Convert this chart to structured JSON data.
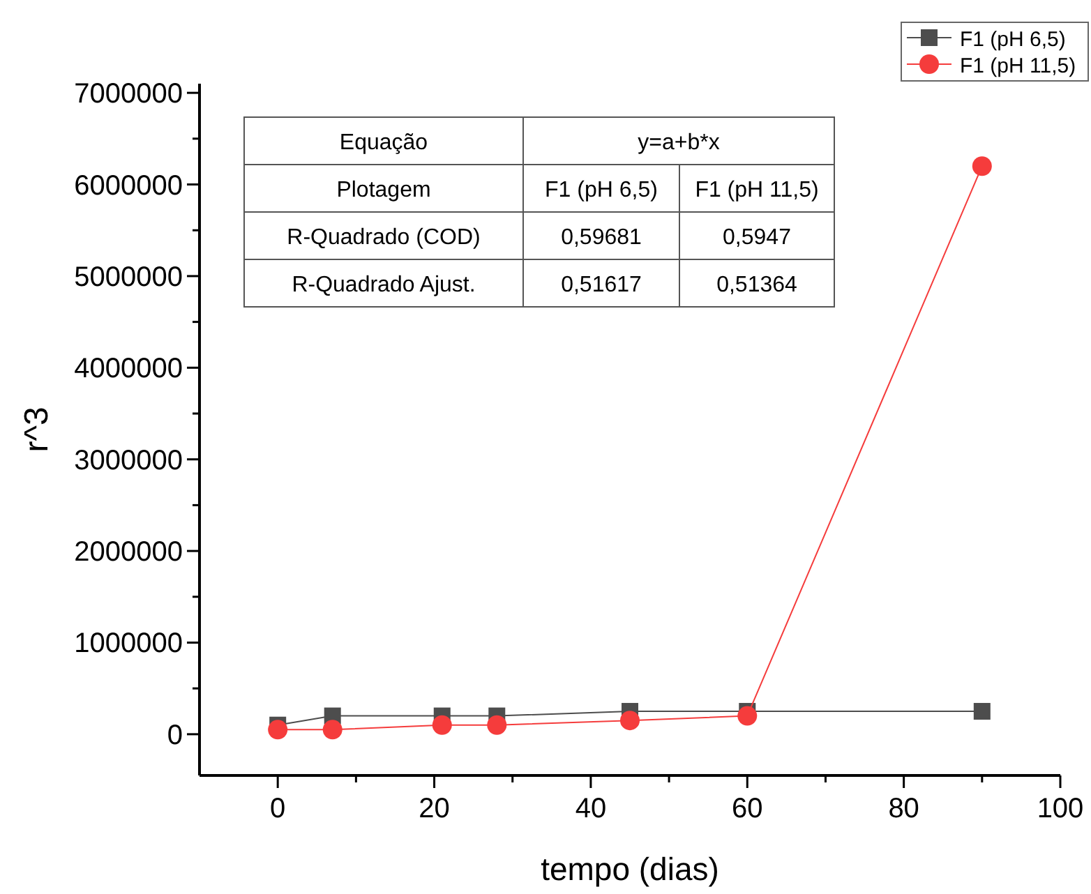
{
  "chart_data": {
    "type": "line",
    "xlabel": "tempo (dias)",
    "ylabel": "r^3",
    "xlim": [
      -10,
      100
    ],
    "xticks": [
      0,
      {
        "value": 10,
        "label": null
      },
      20,
      {
        "value": 30,
        "label": null
      },
      40,
      {
        "value": 50,
        "label": null
      },
      60,
      {
        "value": 70,
        "label": null
      },
      80,
      {
        "value": 90,
        "label": null
      },
      100
    ],
    "ylim": [
      -450000,
      7100000
    ],
    "yticks": [
      0,
      {
        "value": 500000,
        "label": null
      },
      1000000,
      {
        "value": 1500000,
        "label": null
      },
      2000000,
      {
        "value": 2500000,
        "label": null
      },
      3000000,
      {
        "value": 3500000,
        "label": null
      },
      4000000,
      {
        "value": 4500000,
        "label": null
      },
      5000000,
      {
        "value": 5500000,
        "label": null
      },
      6000000,
      {
        "value": 6500000,
        "label": null
      },
      7000000
    ],
    "x": [
      0,
      7,
      21,
      28,
      45,
      60,
      90
    ],
    "series": [
      {
        "name": "F1 (pH 6,5)",
        "color": "#4d4d4d",
        "marker": "square",
        "values": [
          100000,
          200000,
          200000,
          200000,
          250000,
          250000,
          250000
        ]
      },
      {
        "name": "F1 (pH 11,5)",
        "color": "#f53c3c",
        "marker": "circle",
        "values": [
          50000,
          50000,
          100000,
          100000,
          150000,
          200000,
          6200000
        ]
      }
    ],
    "legend": "top right",
    "grid": false,
    "annotations": [
      "Equação",
      "y=a+b*x",
      "Plotagem",
      "F1 (pH 6,5)",
      "F1 (pH 11,5)",
      "R-Quadrado (COD)",
      "0,59681",
      "0,5947",
      "R-Quadrado Ajust.",
      "0,51617",
      "0,51364"
    ]
  }
}
